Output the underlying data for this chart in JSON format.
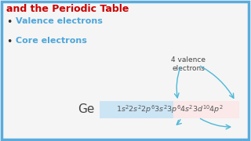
{
  "title_line1": "and the Periodic Table",
  "title_color": "#cc0000",
  "bg_color": "#f5f5f5",
  "border_color": "#5aabdc",
  "bullet1": "Valence electrons",
  "bullet2": "Core electrons",
  "bullet_color": "#4da6d9",
  "element": "Ge",
  "element_color": "#444444",
  "formula_text": "$1s^22s^22p^63s^23p^64s^23d^{10}4p^2$",
  "formula_color": "#555555",
  "formula_box_color": "#cce5f5",
  "formula_highlight_color": "#fbe8e8",
  "valence_label": "4 valence\nelectrons",
  "valence_color": "#444444",
  "arrow_color": "#4db8d8",
  "fig_w": 3.2,
  "fig_h": 1.8,
  "dpi": 100
}
